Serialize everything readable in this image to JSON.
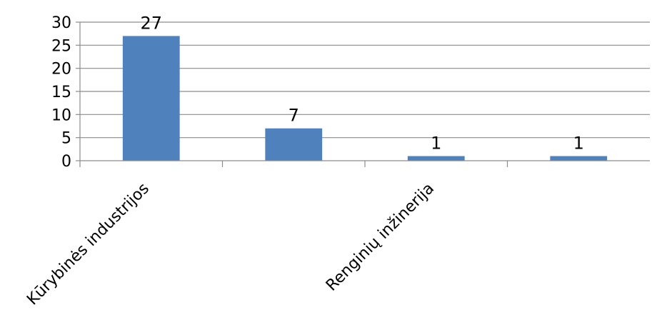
{
  "chart_data": {
    "type": "bar",
    "categories": [
      "Kūrybinės industrijos",
      "",
      "Renginių inžinerija",
      ""
    ],
    "values": [
      27,
      7,
      1,
      1
    ],
    "data_labels": [
      "27",
      "7",
      "1",
      "1"
    ],
    "ylim": [
      0,
      30
    ],
    "yticks": [
      0,
      5,
      10,
      15,
      20,
      25,
      30
    ],
    "ytick_labels": [
      "0",
      "5",
      "10",
      "15",
      "20",
      "25",
      "30"
    ],
    "grid": true,
    "legend": "none",
    "title": "",
    "xlabel": "",
    "ylabel": "",
    "colors": {
      "bar": "#4F81BD",
      "grid": "#8C8C8C",
      "axis": "#8C8C8C",
      "text": "#000000"
    }
  }
}
